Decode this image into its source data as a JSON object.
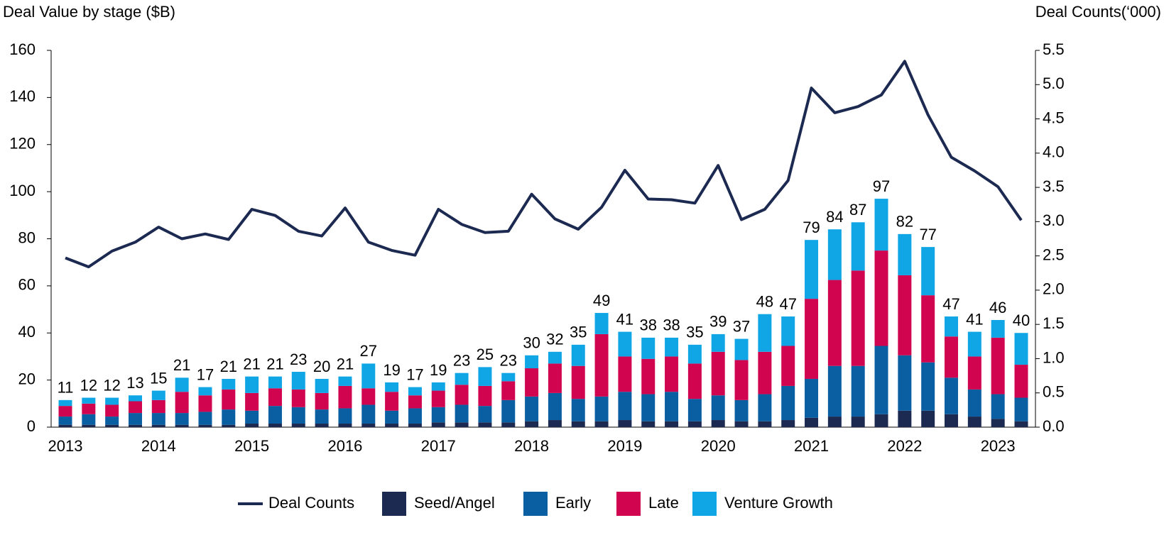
{
  "chart_data": {
    "type": "bar",
    "y_label": "Deal Value by stage ($B)",
    "y2_label": "Deal Counts(‘000)",
    "categories": [
      "2013",
      null,
      null,
      null,
      "2014",
      null,
      null,
      null,
      "2015",
      null,
      null,
      null,
      "2016",
      null,
      null,
      null,
      "2017",
      null,
      null,
      null,
      "2018",
      null,
      null,
      null,
      "2019",
      null,
      null,
      null,
      "2020",
      null,
      null,
      null,
      "2021",
      null,
      null,
      null,
      "2022",
      null,
      null,
      null,
      "2023",
      null
    ],
    "ylim": [
      0,
      160
    ],
    "yticks": [
      0,
      20,
      40,
      60,
      80,
      100,
      120,
      140,
      160
    ],
    "y2lim": [
      0,
      5.5
    ],
    "y2ticks": [
      {
        "value": 0,
        "label": "0.0"
      },
      0.5,
      {
        "value": 1,
        "label": "1.0"
      },
      1.5,
      {
        "value": 2,
        "label": "2.0"
      },
      2.5,
      {
        "value": 3,
        "label": "3.0"
      },
      3.5,
      {
        "value": 4,
        "label": "4.0"
      },
      4.5,
      {
        "value": 5,
        "label": "5.0"
      },
      5.5
    ],
    "stacked": true,
    "totals": [
      11,
      12,
      12,
      13,
      15,
      21,
      17,
      21,
      21,
      21,
      23,
      20,
      21,
      27,
      19,
      17,
      19,
      23,
      25,
      23,
      30,
      32,
      35,
      49,
      41,
      38,
      38,
      35,
      39,
      37,
      48,
      47,
      79,
      84,
      87,
      97,
      82,
      77,
      47,
      41,
      46,
      40
    ],
    "series": [
      {
        "name": "Deal Counts",
        "type": "line",
        "axis": "y2",
        "color": "#1c2a52",
        "values": [
          2.47,
          2.34,
          2.57,
          2.7,
          2.92,
          2.75,
          2.82,
          2.74,
          3.18,
          3.09,
          2.86,
          2.79,
          3.2,
          2.7,
          2.58,
          2.51,
          3.18,
          2.96,
          2.84,
          2.86,
          3.4,
          3.04,
          2.89,
          3.21,
          3.75,
          3.33,
          3.32,
          3.27,
          3.82,
          3.03,
          3.18,
          3.6,
          4.95,
          4.59,
          4.68,
          4.85,
          5.34,
          4.56,
          3.94,
          3.74,
          3.51,
          3.02
        ]
      },
      {
        "name": "Seed/Angel",
        "color": "#1c2a52",
        "values": [
          1,
          1,
          1,
          1,
          1,
          1,
          1,
          1,
          1.5,
          1.5,
          1.5,
          1.5,
          1.5,
          1.5,
          1.5,
          1.5,
          2,
          2,
          2,
          2,
          2.5,
          3,
          2.5,
          2.5,
          3,
          2.5,
          2.5,
          2.5,
          3,
          2.5,
          2.5,
          3,
          4,
          4.5,
          4.5,
          5.5,
          7,
          7,
          5.5,
          4.5,
          3.5,
          2.5
        ]
      },
      {
        "name": "Early",
        "color": "#0a5fa3",
        "values": [
          3.5,
          4.5,
          3.5,
          5,
          5,
          5,
          5.5,
          6.5,
          5.5,
          7.5,
          7,
          6,
          6.5,
          8,
          5.5,
          6.5,
          6.5,
          7.5,
          7,
          9.5,
          10.5,
          11.5,
          9.5,
          10.5,
          12,
          11.5,
          12.5,
          9.5,
          10.5,
          9,
          11.5,
          14.5,
          16.5,
          21.5,
          21.5,
          29,
          23.5,
          20.5,
          15.5,
          11.5,
          10.5,
          10
        ]
      },
      {
        "name": "Late",
        "color": "#d0044f",
        "values": [
          4.5,
          4.5,
          5,
          5,
          5.5,
          9,
          7,
          8.5,
          7.5,
          7.5,
          7.5,
          7,
          9.5,
          7,
          8,
          5.5,
          7,
          8.5,
          8.5,
          8,
          12,
          12.5,
          14,
          26.5,
          15,
          15,
          15,
          15,
          18.5,
          17,
          18,
          17,
          34,
          36.5,
          40.5,
          40.5,
          34,
          28.5,
          17.5,
          14,
          24,
          14
        ]
      },
      {
        "name": "Venture Growth",
        "color": "#10a6e6",
        "values": [
          2.5,
          2.5,
          3,
          2.5,
          4,
          6,
          3.5,
          4.5,
          7,
          5,
          7.5,
          6,
          4,
          10.5,
          4,
          3.5,
          3.5,
          5,
          8,
          3.5,
          5.5,
          5,
          9,
          9,
          10.5,
          9,
          8,
          8,
          7.5,
          9,
          16,
          12.5,
          25,
          21.5,
          20.5,
          22,
          17.5,
          20.5,
          8.5,
          10.5,
          7.5,
          13.5
        ]
      }
    ]
  }
}
